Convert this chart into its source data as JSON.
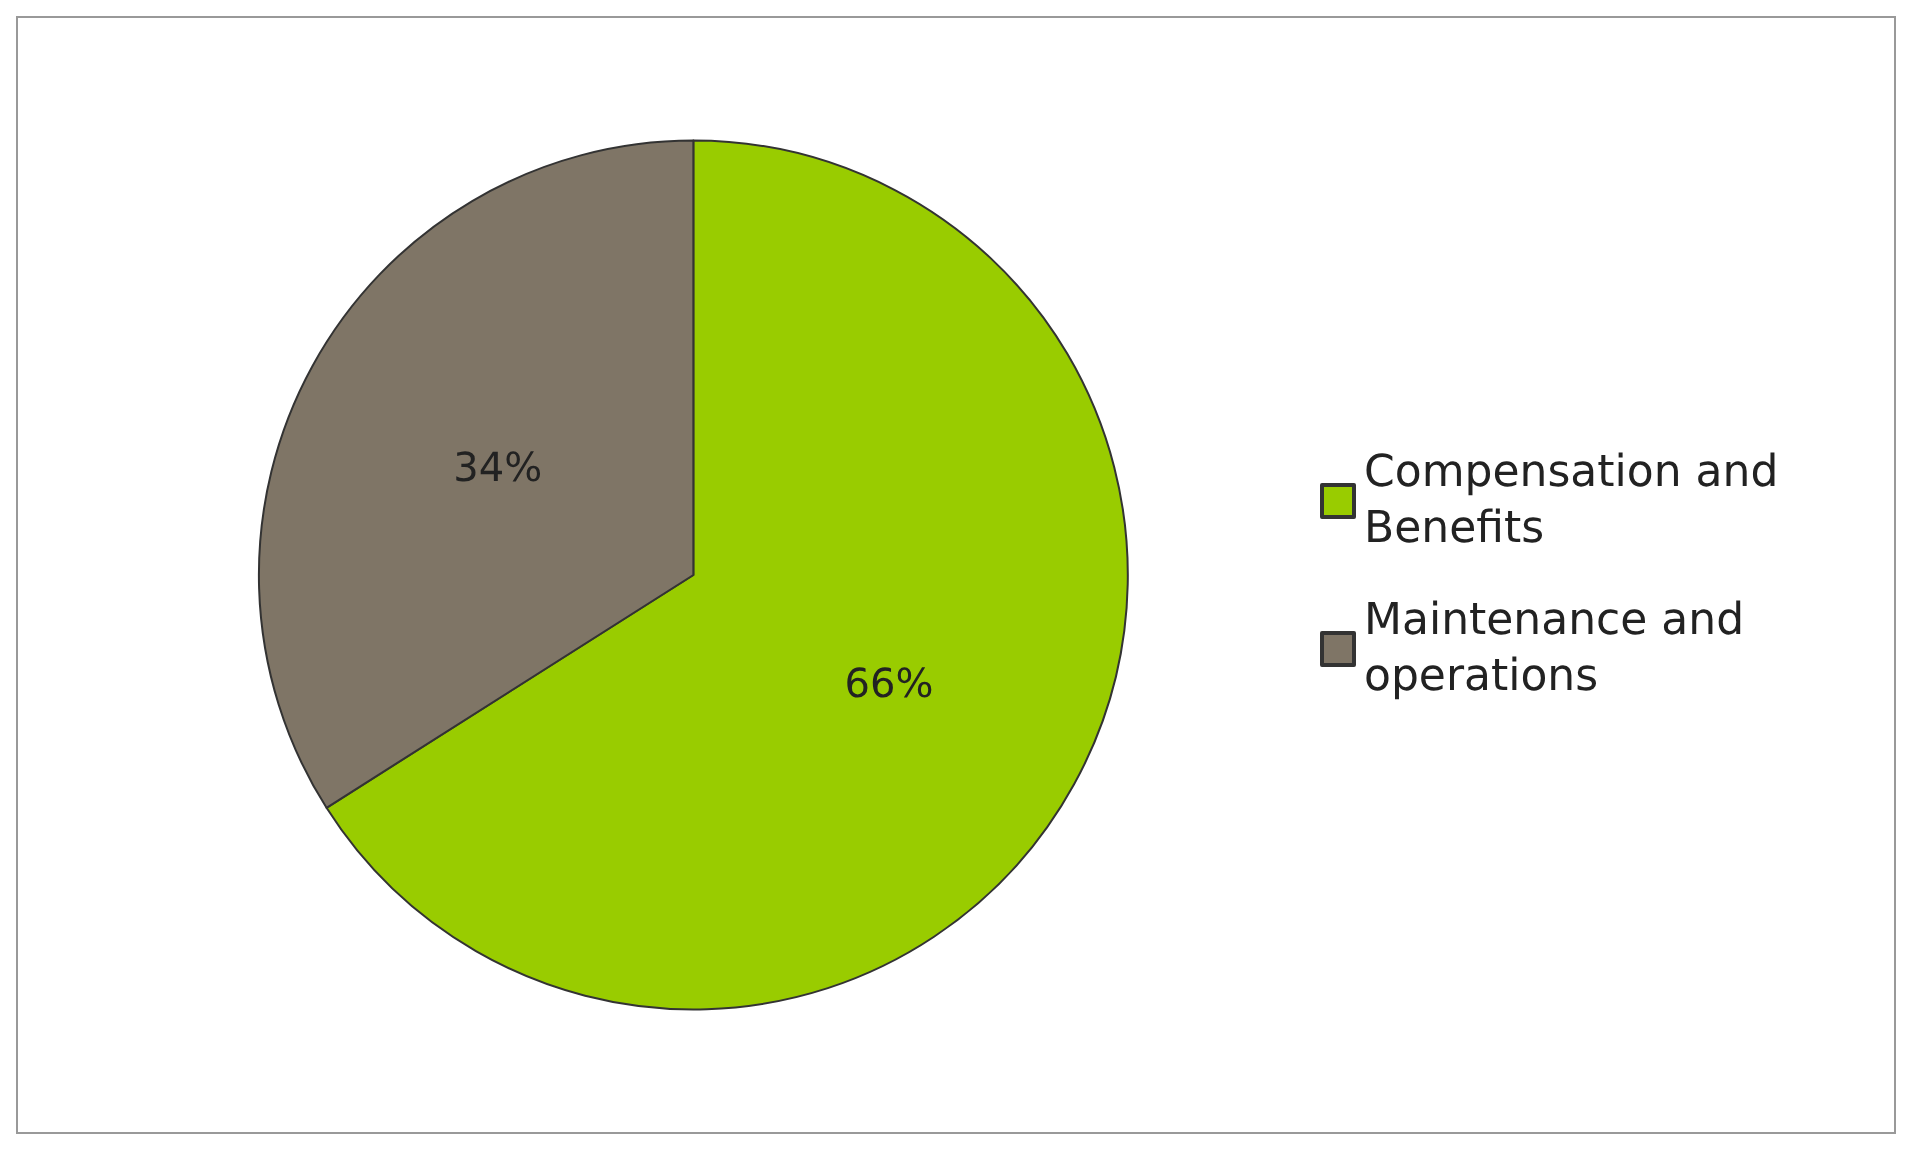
{
  "chart_data": {
    "type": "pie",
    "categories": [
      "Compensation and Benefits",
      "Maintenance and operations"
    ],
    "values": [
      66,
      34
    ],
    "value_labels": [
      "66%",
      "34%"
    ],
    "colors": [
      "#99cc00",
      "#7f7566"
    ],
    "legend": "right"
  }
}
